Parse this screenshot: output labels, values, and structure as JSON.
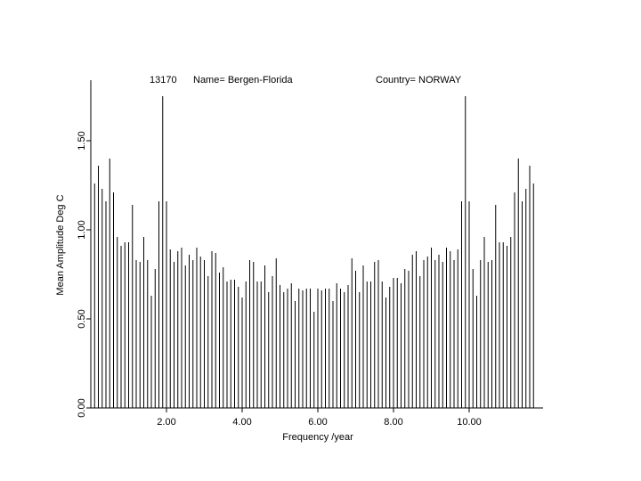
{
  "header": {
    "station": "13170",
    "name": "Name= Bergen-Florida",
    "country": "Country= NORWAY"
  },
  "chart_data": {
    "type": "bar",
    "xlabel": "Frequency /year",
    "ylabel": "Mean Amplitude Deg C",
    "xlim": [
      0,
      12
    ],
    "ylim": [
      0,
      1.84
    ],
    "x_ticks": [
      {
        "value": 2,
        "label": "2.00"
      },
      {
        "value": 4,
        "label": "4.00"
      },
      {
        "value": 6,
        "label": "6.00"
      },
      {
        "value": 8,
        "label": "8.00"
      },
      {
        "value": 10,
        "label": "10.00"
      }
    ],
    "y_ticks": [
      {
        "value": 0,
        "label": "0.00"
      },
      {
        "value": 0.5,
        "label": "0.50"
      },
      {
        "value": 1.0,
        "label": "1.00"
      },
      {
        "value": 1.5,
        "label": "1.50"
      }
    ],
    "x_step": 0.1,
    "values": [
      1.84,
      1.26,
      1.36,
      1.23,
      1.16,
      1.4,
      1.21,
      0.96,
      0.91,
      0.93,
      0.93,
      1.14,
      0.83,
      0.82,
      0.96,
      0.83,
      0.63,
      0.78,
      1.16,
      1.75,
      1.16,
      0.89,
      0.82,
      0.88,
      0.9,
      0.8,
      0.86,
      0.83,
      0.9,
      0.85,
      0.83,
      0.74,
      0.88,
      0.87,
      0.76,
      0.79,
      0.71,
      0.72,
      0.72,
      0.68,
      0.62,
      0.71,
      0.83,
      0.82,
      0.71,
      0.71,
      0.8,
      0.65,
      0.74,
      0.84,
      0.69,
      0.65,
      0.67,
      0.7,
      0.6,
      0.67,
      0.66,
      0.67,
      0.67,
      0.54,
      0.67,
      0.66,
      0.67,
      0.67,
      0.6,
      0.7,
      0.67,
      0.65,
      0.69,
      0.84,
      0.77,
      0.65,
      0.8,
      0.71,
      0.71,
      0.82,
      0.83,
      0.71,
      0.62,
      0.68,
      0.73,
      0.73,
      0.7,
      0.78,
      0.77,
      0.86,
      0.88,
      0.74,
      0.83,
      0.85,
      0.9,
      0.83,
      0.86,
      0.82,
      0.9,
      0.88,
      0.83,
      0.89,
      1.16,
      1.75,
      1.16,
      0.78,
      0.63,
      0.83,
      0.96,
      0.82,
      0.83,
      1.14,
      0.93,
      0.93,
      0.91,
      0.96,
      1.21,
      1.4,
      1.16,
      1.23,
      1.36,
      1.26
    ]
  }
}
